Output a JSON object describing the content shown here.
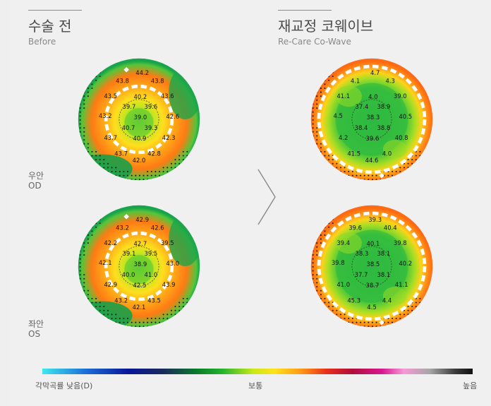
{
  "before": {
    "title": "수술 전",
    "subtitle": "Before"
  },
  "after": {
    "title": "재교정 코웨이브",
    "subtitle": "Re-Care Co-Wave"
  },
  "eyes": {
    "od": {
      "ko": "우안",
      "en": "OD"
    },
    "os": {
      "ko": "좌안",
      "en": "OS"
    }
  },
  "maps": {
    "before_od": [
      "44.2",
      "43.8",
      "43.8",
      "43.5",
      "43.6",
      "40.2",
      "39.7",
      "39.6",
      "43.2",
      "39.0",
      "42.6",
      "40.7",
      "39.3",
      "43.7",
      "40.9",
      "42.3",
      "43.7",
      "42.8",
      "42.0"
    ],
    "before_os": [
      "42.9",
      "43.2",
      "42.6",
      "42.2",
      "39.5",
      "42.7",
      "39.1",
      "39.5",
      "42.1",
      "38.9",
      "43.0",
      "40.0",
      "41.0",
      "42.9",
      "42.5",
      "43.9",
      "43.2",
      "43.5",
      "42.1"
    ],
    "after_od": [
      "4.7",
      "4.1",
      "4.3",
      "41.1",
      "39.0",
      "4.0",
      "37.4",
      "38.9",
      "4.5",
      "38.3",
      "40.5",
      "38.4",
      "38.8",
      "4.2",
      "39.6",
      "40.8",
      "41.5",
      "4.0",
      "44.6"
    ],
    "after_os": [
      "39.3",
      "39.6",
      "40.4",
      "39.4",
      "39.8",
      "40.1",
      "38.3",
      "38.1",
      "39.8",
      "38.5",
      "40.2",
      "37.7",
      "38.1",
      "41.0",
      "38.7",
      "41.1",
      "45.3",
      "4.4",
      "4.5"
    ]
  },
  "scale": {
    "low": "각막곡률 낮음(D)",
    "mid": "보통",
    "high": "높음"
  }
}
